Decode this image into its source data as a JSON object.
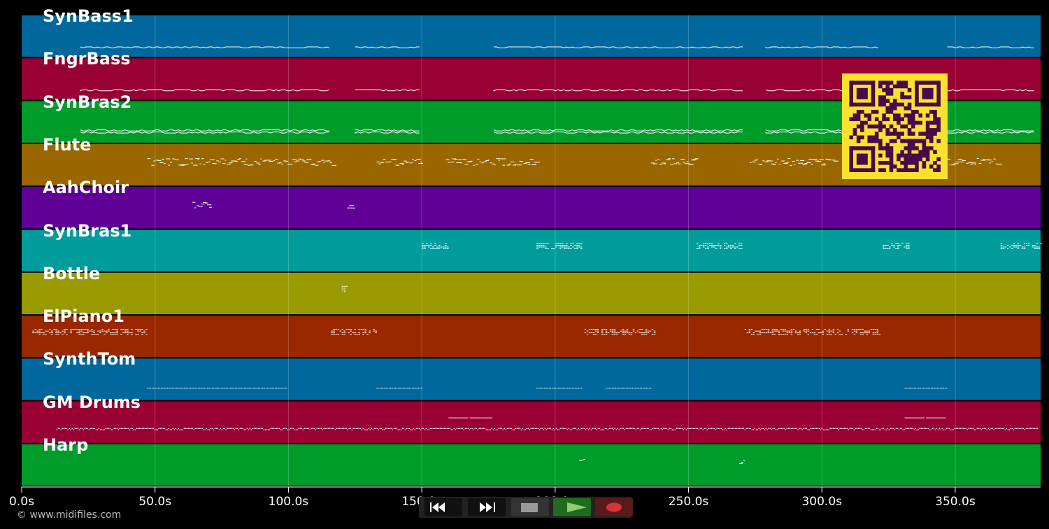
{
  "tracks": [
    {
      "name": "SynBass1",
      "color": "#00689c"
    },
    {
      "name": "FngrBass",
      "color": "#990033"
    },
    {
      "name": "SynBras2",
      "color": "#009c2a"
    },
    {
      "name": "Flute",
      "color": "#996600"
    },
    {
      "name": "AahChoir",
      "color": "#5f0096"
    },
    {
      "name": "SynBras1",
      "color": "#009c9c"
    },
    {
      "name": "Bottle",
      "color": "#999900"
    },
    {
      "name": "ElPiano1",
      "color": "#992800"
    },
    {
      "name": "SynthTom",
      "color": "#00689c"
    },
    {
      "name": "GM Drums",
      "color": "#990033"
    },
    {
      "name": "Harp",
      "color": "#009c2a"
    }
  ],
  "timeline": {
    "range_seconds": [
      0,
      382
    ],
    "ticks": [
      "0.0s",
      "50.0s",
      "100.0s",
      "150.0s",
      "200.0s",
      "250.0s",
      "300.0s",
      "350.0s"
    ],
    "tick_values": [
      0,
      50,
      100,
      150,
      200,
      250,
      300,
      350
    ]
  },
  "note_segments": [
    {
      "track": 0,
      "segments": [
        [
          22,
          116
        ],
        [
          125,
          150
        ],
        [
          177,
          271
        ],
        [
          279,
          321
        ],
        [
          347,
          380
        ]
      ],
      "style": "line"
    },
    {
      "track": 1,
      "segments": [
        [
          22,
          116
        ],
        [
          125,
          150
        ],
        [
          177,
          271
        ],
        [
          279,
          321
        ],
        [
          347,
          380
        ]
      ],
      "style": "line"
    },
    {
      "track": 2,
      "segments": [
        [
          22,
          116
        ],
        [
          125,
          150
        ],
        [
          177,
          271
        ],
        [
          279,
          321
        ],
        [
          347,
          380
        ]
      ],
      "style": "double"
    },
    {
      "track": 3,
      "segments": [
        [
          47,
          117
        ],
        [
          133,
          150
        ],
        [
          159,
          193
        ],
        [
          236,
          253
        ],
        [
          273,
          305
        ],
        [
          347,
          366
        ]
      ],
      "style": "scatter"
    },
    {
      "track": 4,
      "segments": [
        [
          64,
          71
        ],
        [
          122,
          124
        ]
      ],
      "style": "scatter"
    },
    {
      "track": 5,
      "segments": [
        [
          150,
          160
        ],
        [
          193,
          210
        ],
        [
          253,
          270
        ],
        [
          322,
          333
        ],
        [
          367,
          382
        ]
      ],
      "style": "block"
    },
    {
      "track": 6,
      "segments": [
        [
          120,
          122
        ]
      ],
      "style": "block"
    },
    {
      "track": 7,
      "segments": [
        [
          4,
          47
        ],
        [
          116,
          133
        ],
        [
          211,
          237
        ],
        [
          271,
          322
        ]
      ],
      "style": "block"
    },
    {
      "track": 8,
      "segments": [
        [
          47,
          99
        ],
        [
          133,
          150
        ],
        [
          193,
          210
        ],
        [
          219,
          236
        ],
        [
          331,
          347
        ]
      ],
      "style": "dotted"
    },
    {
      "track": 9,
      "segments": [
        [
          13,
          381
        ]
      ],
      "style": "drums"
    },
    {
      "track": 10,
      "segments": [
        [
          209,
          211
        ],
        [
          269,
          271
        ]
      ],
      "style": "scatter"
    }
  ],
  "copyright": "© www.midifiles.com",
  "transport": {
    "buttons": [
      {
        "name": "rewind",
        "icon": "rewind-icon"
      },
      {
        "name": "fast-forward",
        "icon": "fast-forward-icon"
      },
      {
        "name": "stop",
        "icon": "stop-icon"
      },
      {
        "name": "play",
        "icon": "play-icon"
      },
      {
        "name": "record",
        "icon": "record-icon"
      }
    ]
  },
  "qr_code": {
    "color": "#f8e22e",
    "module_color": "#4a0a4a"
  }
}
